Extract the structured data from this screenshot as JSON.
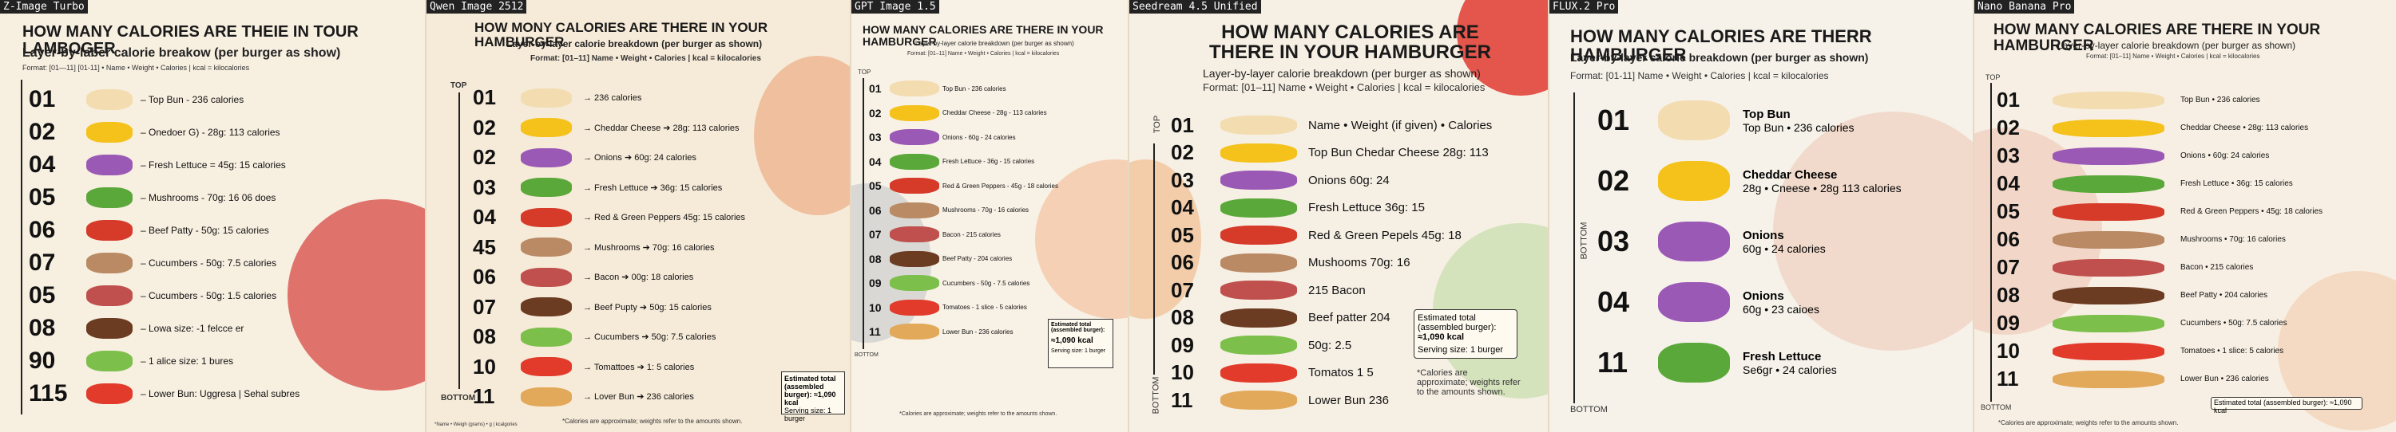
{
  "models": [
    "Z-Image Turbo",
    "Qwen Image 2512",
    "GPT Image 1.5",
    "Seedream 4.5 Unified",
    "FLUX.2 Pro",
    "Nano Banana Pro"
  ],
  "p1": {
    "title": "HOW MANY CALORIES ARE THEIE IN TOUR LAMBOGER",
    "subtitle": "Layer-by-laber calorie breakow (per burger as show)",
    "format": "Format: [01—11] [01-11] • Name • Weight • Calories | kcal = kilocalories",
    "rows": [
      {
        "n": "01",
        "t": "– Top Bun - 236 calories"
      },
      {
        "n": "02",
        "t": "– Onedoer G) - 28g: 113 calories"
      },
      {
        "n": "04",
        "t": "– Fresh Lettuce = 45g: 15 calories"
      },
      {
        "n": "05",
        "t": "– Mushrooms - 70g: 16 06 does"
      },
      {
        "n": "06",
        "t": "– Beef Patty - 50g: 15 calories"
      },
      {
        "n": "07",
        "t": "– Cucumbers - 50g: 7.5 calories"
      },
      {
        "n": "05",
        "t": "– Cucumbers - 50g: 1.5 calories"
      },
      {
        "n": "08",
        "t": "– Lowa size: -1 felcce er"
      },
      {
        "n": "90",
        "t": "– 1 alice size: 1 bures"
      },
      {
        "n": "115",
        "t": "– Lower Bun: Uggresa | Sehal subres"
      }
    ]
  },
  "p2": {
    "title": "HOW MONY CALORIES ARE THERE IN YOUR HAMBURGER",
    "subtitle": "Layer-oy-layer calorie breakdown (per burger as shown)",
    "format": "Format: [01–11] Name • Weight • Calories | kcal = kilocalories",
    "top": "TOP",
    "bottom": "BOTTOM",
    "rows": [
      {
        "n": "01",
        "t": "→ 236 calories"
      },
      {
        "n": "02",
        "t": "→ Cheddar Cheese ➔ 28g: 113 calories"
      },
      {
        "n": "02",
        "t": "→ Onions ➔ 60g: 24 calories"
      },
      {
        "n": "03",
        "t": "→ Fresh Lettuce ➔ 36g: 15 calories"
      },
      {
        "n": "04",
        "t": "→ Red & Green Peppers 45g: 15 calories"
      },
      {
        "n": "45",
        "t": "→ Mushrooms ➔ 70g: 16 calories"
      },
      {
        "n": "06",
        "t": "→ Bacon ➔ 00g: 18 calories"
      },
      {
        "n": "07",
        "t": "→ Beef Pupty ➔ 50g: 15 calories"
      },
      {
        "n": "08",
        "t": "→ Cucumbers ➔ 50g: 7.5 calories"
      },
      {
        "n": "10",
        "t": "→ Tomattoes ➔ 1: 5 calories"
      },
      {
        "n": "11",
        "t": "→ Lover Bun ➔ 236 calories"
      }
    ],
    "total": "Estimated total (assembled burger): ≈1,090 kcal",
    "serving": "Serving size: 1 burger",
    "footnote": "*Calories are approximate; weights refer to the amounts shown.",
    "foot_left": "*Name • Weigh (grams) • g | kcalgories"
  },
  "p3": {
    "title": "HOW MANY CALORIES ARE THERE IN YOUR HAMBURGER",
    "subtitle": "Layer-by-layer calorie breakdown (per burger as shown)",
    "format": "Format: [01–11] Name • Weight • Calories | kcal = kilocalories",
    "top": "TOP",
    "bottom": "BOTTOM",
    "rows": [
      {
        "n": "01",
        "t": "Top Bun - 236 calories"
      },
      {
        "n": "02",
        "t": "Cheddar Cheese - 28g - 113 calories"
      },
      {
        "n": "03",
        "t": "Onions - 60g - 24 calories"
      },
      {
        "n": "04",
        "t": "Fresh Lettuce - 36g - 15 calories"
      },
      {
        "n": "05",
        "t": "Red & Green Peppers - 45g - 18 calories"
      },
      {
        "n": "06",
        "t": "Mushrooms - 70g - 16 calories"
      },
      {
        "n": "07",
        "t": "Bacon - 215 calories"
      },
      {
        "n": "08",
        "t": "Beef Patty - 204 calories"
      },
      {
        "n": "09",
        "t": "Cucumbers - 50g - 7.5 calories"
      },
      {
        "n": "10",
        "t": "Tomatoes - 1 slice - 5 calories"
      },
      {
        "n": "11",
        "t": "Lower Bun - 236 calories"
      }
    ],
    "total_label": "Estimated total (assembled burger):",
    "total": "≈1,090 kcal",
    "serving": "Serving size: 1 burger",
    "footnote": "*Calories are approximate; weights refer to the amounts shown."
  },
  "p4": {
    "title1": "HOW MANY CALORIES ARE",
    "title2": "THERE IN YOUR HAMBURGER",
    "subtitle": "Layer-by-layer calorie breakdown (per burger as shown)",
    "format": "Format: [01–11] Name • Weight • Calories | kcal = kilocalories",
    "top": "TOP",
    "bottom": "BOTTOM",
    "rows": [
      {
        "n": "01",
        "t": "Name • Weight (if given) • Calories"
      },
      {
        "n": "02",
        "t": "Top Bun  Chedar Cheese 28g: 113"
      },
      {
        "n": "03",
        "t": "Onions 60g: 24"
      },
      {
        "n": "04",
        "t": "Fresh Lettuce 36g: 15"
      },
      {
        "n": "05",
        "t": "Red & Green Pepels 45g: 18"
      },
      {
        "n": "06",
        "t": "Mushooms 70g: 16"
      },
      {
        "n": "07",
        "t": "215 Bacon"
      },
      {
        "n": "08",
        "t": "Beef patter 204"
      },
      {
        "n": "09",
        "t": "50g: 2.5"
      },
      {
        "n": "10",
        "t": "Tomatos 1 5"
      },
      {
        "n": "11",
        "t": "Lower Bun  236"
      }
    ],
    "total_label": "Estimated total (assembled burger):",
    "total": "≈1,090 kcal",
    "serving": "Serving size: 1 burger",
    "note": "*Calories are approximate; weights refer to the amounts shown."
  },
  "p5": {
    "title": "HOW MANY CALORIES ARE THERR HAMBURGER",
    "subtitle": "Layer-by-layer calorie breakdown (per burger as shown)",
    "format": "Format: [01-11] Name • Weight • Calories | kcal = kilocalories",
    "top": "TOP",
    "bottom": "BOTTOM",
    "rows": [
      {
        "n": "01",
        "h": "Top Bun",
        "t": "Top Bun • 236 calories"
      },
      {
        "n": "02",
        "h": "Cheddar Cheese",
        "t": "28g • Cneese • 28g 113 calories"
      },
      {
        "n": "03",
        "h": "Onions",
        "t": "60g • 24 calories"
      },
      {
        "n": "04",
        "h": "Onions",
        "t": "60g • 23 caioes"
      },
      {
        "n": "11",
        "h": "Fresh Lettuce",
        "t": "Se6gr • 24 calories"
      }
    ]
  },
  "p6": {
    "title": "HOW MANY CALORIES ARE THERE IN YOUR HAMBURGER",
    "subtitle": "Layer-by-layer calorie breakdown (per burger as shown)",
    "format": "Format: [01–11] Name • Weight • Calories | kcal = kilocalories",
    "top": "TOP",
    "bottom": "BOTTOM",
    "rows": [
      {
        "n": "01",
        "t": "Top Bun • 236 calories"
      },
      {
        "n": "02",
        "t": "Cheddar Cheese • 28g: 113 calories"
      },
      {
        "n": "03",
        "t": "Onions • 60g: 24 calories"
      },
      {
        "n": "04",
        "t": "Fresh Lettuce • 36g: 15 calories"
      },
      {
        "n": "05",
        "t": "Red & Green Peppers • 45g: 18 calories"
      },
      {
        "n": "06",
        "t": "Mushrooms • 70g: 16 calories"
      },
      {
        "n": "07",
        "t": "Bacon • 215 calories"
      },
      {
        "n": "08",
        "t": "Beef Patty • 204 calories"
      },
      {
        "n": "09",
        "t": "Cucumbers • 50g: 7.5 calories"
      },
      {
        "n": "10",
        "t": "Tomatoes • 1 slice: 5 calories"
      },
      {
        "n": "11",
        "t": "Lower Bun • 236 calories"
      }
    ],
    "total": "Estimated total (assembled burger): ≈1,090 kcal",
    "footnote": "*Calories are approximate; weights refer to the amounts shown."
  },
  "colors": {
    "bun": "#e2a95a",
    "cheese": "#f4c21a",
    "onion": "#9b59b6",
    "lettuce": "#5aa83a",
    "pepper": "#d63b2a",
    "mushroom": "#b98a64",
    "bacon": "#c0504d",
    "patty": "#6b3b22",
    "cucumber": "#7cbf4a",
    "tomato": "#e23b2b",
    "bunlight": "#f3dcb0"
  }
}
